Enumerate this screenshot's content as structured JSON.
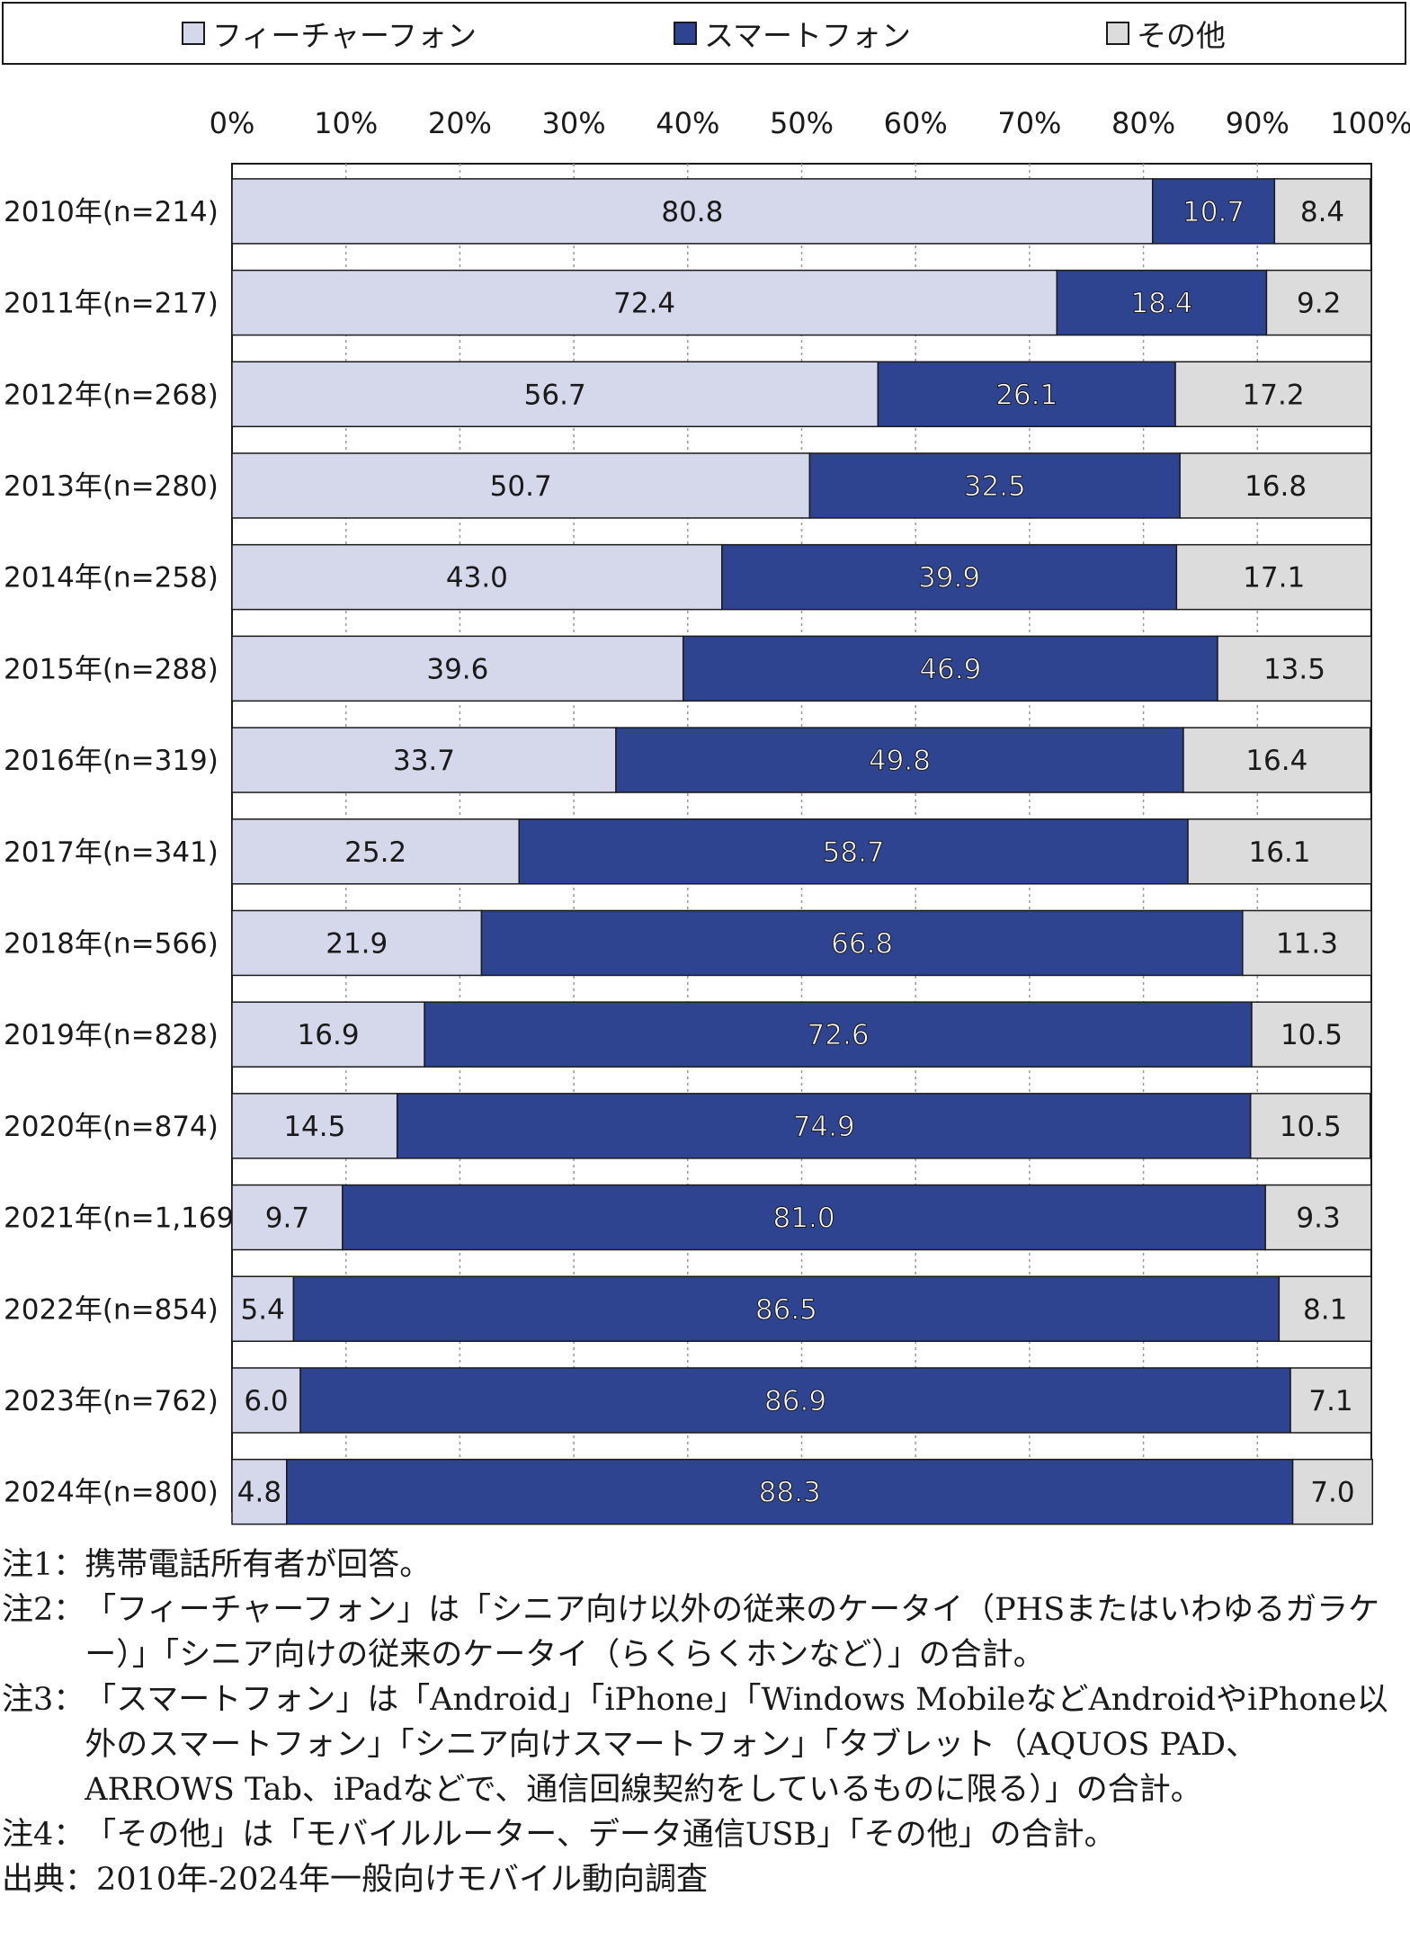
{
  "legend": {
    "items": [
      {
        "label": "フィーチャーフォン",
        "color": "#d5d8ea"
      },
      {
        "label": "スマートフォン",
        "color": "#2e4491"
      },
      {
        "label": "その他",
        "color": "#dcdcdc"
      }
    ]
  },
  "chart_data": {
    "type": "bar",
    "orientation": "horizontal",
    "stacked": true,
    "xlim": [
      0,
      100
    ],
    "x_ticks": [
      "0%",
      "10%",
      "20%",
      "30%",
      "40%",
      "50%",
      "60%",
      "70%",
      "80%",
      "90%",
      "100%"
    ],
    "grid": "vertical dashed",
    "categories": [
      "2010年(n=214)",
      "2011年(n=217)",
      "2012年(n=268)",
      "2013年(n=280)",
      "2014年(n=258)",
      "2015年(n=288)",
      "2016年(n=319)",
      "2017年(n=341)",
      "2018年(n=566)",
      "2019年(n=828)",
      "2020年(n=874)",
      "2021年(n=1,169)",
      "2022年(n=854)",
      "2023年(n=762)",
      "2024年(n=800)"
    ],
    "series": [
      {
        "name": "フィーチャーフォン",
        "color": "#d5d8ea",
        "values": [
          80.8,
          72.4,
          56.7,
          50.7,
          43.0,
          39.6,
          33.7,
          25.2,
          21.9,
          16.9,
          14.5,
          9.7,
          5.4,
          6.0,
          4.8
        ],
        "labels": [
          "80.8",
          "72.4",
          "56.7",
          "50.7",
          "43.0",
          "39.6",
          "33.7",
          "25.2",
          "21.9",
          "16.9",
          "14.5",
          "9.7",
          "5.4",
          "6.0",
          "4.8"
        ]
      },
      {
        "name": "スマートフォン",
        "color": "#2e4491",
        "values": [
          10.7,
          18.4,
          26.1,
          32.5,
          39.9,
          46.9,
          49.8,
          58.7,
          66.8,
          72.6,
          74.9,
          81.0,
          86.5,
          86.9,
          88.3
        ],
        "labels": [
          "10.7",
          "18.4",
          "26.1",
          "32.5",
          "39.9",
          "46.9",
          "49.8",
          "58.7",
          "66.8",
          "72.6",
          "74.9",
          "81.0",
          "86.5",
          "86.9",
          "88.3"
        ]
      },
      {
        "name": "その他",
        "color": "#dcdcdc",
        "values": [
          8.4,
          9.2,
          17.2,
          16.8,
          17.1,
          13.5,
          16.4,
          16.1,
          11.3,
          10.5,
          10.5,
          9.3,
          8.1,
          7.1,
          7.0
        ],
        "labels": [
          "8.4",
          "9.2",
          "17.2",
          "16.8",
          "17.1",
          "13.5",
          "16.4",
          "16.1",
          "11.3",
          "10.5",
          "10.5",
          "9.3",
          "8.1",
          "7.1",
          "7.0"
        ]
      }
    ]
  },
  "notes": [
    {
      "prefix": "注1：",
      "text": "携帯電話所有者が回答。"
    },
    {
      "prefix": "注2：",
      "text": "「フィーチャーフォン」は「シニア向け以外の従来のケータイ（PHSまたはいわゆるガラケー）」「シニア向けの従来のケータイ（らくらくホンなど）」の合計。"
    },
    {
      "prefix": "注3：",
      "text": "「スマートフォン」は「Android」「iPhone」「Windows MobileなどAndroidやiPhone以外のスマートフォン」「シニア向けスマートフォン」「タブレット（AQUOS PAD、ARROWS Tab、iPadなどで、通信回線契約をしているものに限る）」の合計。"
    },
    {
      "prefix": "注4：",
      "text": "「その他」は「モバイルルーター、データ通信USB」「その他」の合計。"
    },
    {
      "prefix": "出典：",
      "text": "2010年-2024年一般向けモバイル動向調査"
    }
  ]
}
